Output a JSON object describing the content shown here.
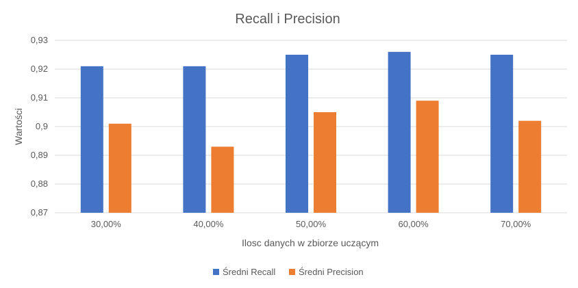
{
  "chart_data": {
    "type": "bar",
    "title": "Recall i Precision",
    "xlabel": "Ilosc danych w zbiorze uczącym",
    "ylabel": "Wartości",
    "categories": [
      "30,00%",
      "40,00%",
      "50,00%",
      "60,00%",
      "70,00%"
    ],
    "series": [
      {
        "name": "Średni Recall",
        "color": "#4472c4",
        "values": [
          0.921,
          0.921,
          0.925,
          0.926,
          0.925
        ]
      },
      {
        "name": "Średni Precision",
        "color": "#ed7d31",
        "values": [
          0.901,
          0.893,
          0.905,
          0.909,
          0.902
        ]
      }
    ],
    "ylim": [
      0.87,
      0.93
    ],
    "yticks": [
      0.87,
      0.88,
      0.89,
      0.9,
      0.91,
      0.92,
      0.93
    ],
    "ytick_labels": [
      "0,87",
      "0,88",
      "0,89",
      "0,9",
      "0,91",
      "0,92",
      "0,93"
    ],
    "grid": true,
    "legend_position": "bottom"
  }
}
